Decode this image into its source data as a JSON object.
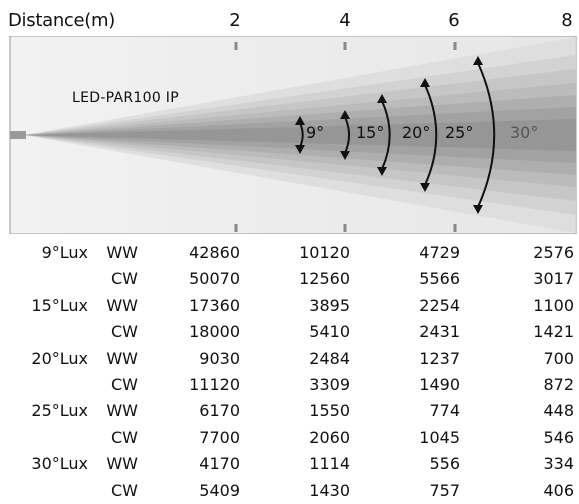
{
  "header": {
    "label": "Distance(m)",
    "distances": [
      "2",
      "4",
      "6",
      "8"
    ]
  },
  "diagram": {
    "model": "LED-PAR100 IP",
    "angles": [
      "9°",
      "15°",
      "20°",
      "25°",
      "30°"
    ]
  },
  "table": {
    "rows": [
      {
        "angle": "9°Lux",
        "type": "WW",
        "values": [
          "42860",
          "10120",
          "4729",
          "2576"
        ]
      },
      {
        "angle": "",
        "type": "CW",
        "values": [
          "50070",
          "12560",
          "5566",
          "3017"
        ]
      },
      {
        "angle": "15°Lux",
        "type": "WW",
        "values": [
          "17360",
          "3895",
          "2254",
          "1100"
        ]
      },
      {
        "angle": "",
        "type": "CW",
        "values": [
          "18000",
          "5410",
          "2431",
          "1421"
        ]
      },
      {
        "angle": "20°Lux",
        "type": "WW",
        "values": [
          "9030",
          "2484",
          "1237",
          "700"
        ]
      },
      {
        "angle": "",
        "type": "CW",
        "values": [
          "11120",
          "3309",
          "1490",
          "872"
        ]
      },
      {
        "angle": "25°Lux",
        "type": "WW",
        "values": [
          "6170",
          "1550",
          "774",
          "448"
        ]
      },
      {
        "angle": "",
        "type": "CW",
        "values": [
          "7700",
          "2060",
          "1045",
          "546"
        ]
      },
      {
        "angle": "30°Lux",
        "type": "WW",
        "values": [
          "4170",
          "1114",
          "556",
          "334"
        ]
      },
      {
        "angle": "",
        "type": "CW",
        "values": [
          "5409",
          "1430",
          "757",
          "406"
        ]
      }
    ]
  }
}
